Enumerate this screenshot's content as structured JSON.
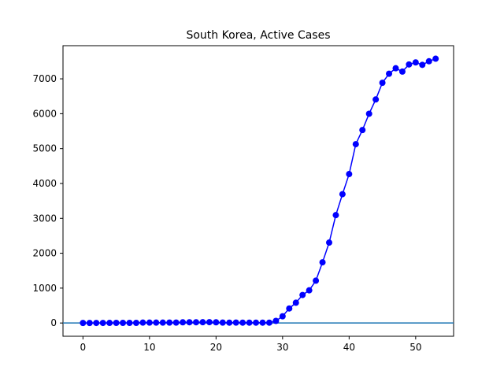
{
  "chart_data": {
    "type": "line",
    "title": "South Korea, Active Cases",
    "xlabel": "",
    "ylabel": "",
    "xlim": [
      -3,
      55.7
    ],
    "ylim": [
      -380,
      7950
    ],
    "xticks": [
      0,
      10,
      20,
      30,
      40,
      50
    ],
    "yticks": [
      0,
      1000,
      2000,
      3000,
      4000,
      5000,
      6000,
      7000
    ],
    "grid": false,
    "baseline": 0,
    "colors": {
      "series": "#0000ff",
      "baseline": "#1f77b4"
    },
    "series": [
      {
        "x": [
          0,
          1,
          2,
          3,
          4,
          5,
          6,
          7,
          8,
          9,
          10,
          11,
          12,
          13,
          14,
          15,
          16,
          17,
          18,
          19,
          20,
          21,
          22,
          23,
          24,
          25,
          26,
          27,
          28,
          29,
          30,
          31,
          32,
          33,
          34,
          35,
          36,
          37,
          38,
          39,
          40,
          41,
          42,
          43,
          44,
          45,
          46,
          47,
          48,
          49,
          50,
          51,
          52,
          53
        ],
        "values": [
          1,
          1,
          2,
          2,
          3,
          4,
          4,
          4,
          4,
          11,
          11,
          11,
          11,
          12,
          12,
          20,
          22,
          22,
          23,
          24,
          21,
          12,
          10,
          12,
          10,
          10,
          10,
          10,
          10,
          60,
          193,
          417,
          581,
          803,
          937,
          1213,
          1740,
          2305,
          3093,
          3693,
          4269,
          5126,
          5532,
          5998,
          6408,
          6886,
          7146,
          7303,
          7207,
          7412,
          7470,
          7401,
          7503,
          7577
        ]
      }
    ]
  }
}
